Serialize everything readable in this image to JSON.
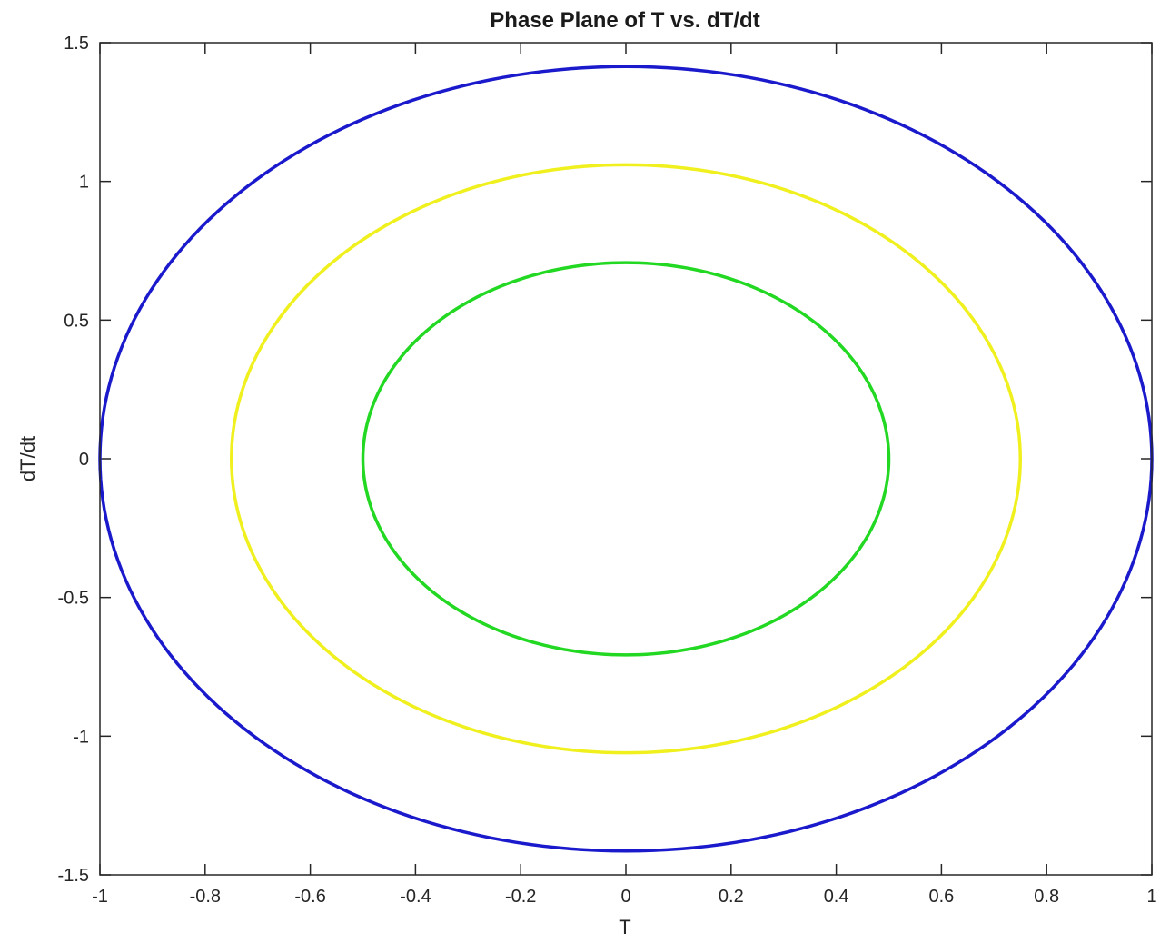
{
  "chart_data": {
    "type": "line",
    "title": "Phase Plane of T vs. dT/dt",
    "xlabel": "T",
    "ylabel": "dT/dt",
    "xlim": [
      -1,
      1
    ],
    "ylim": [
      -1.5,
      1.5
    ],
    "grid": false,
    "xticks": [
      -1,
      -0.8,
      -0.6,
      -0.4,
      -0.2,
      0,
      0.2,
      0.4,
      0.6,
      0.8,
      1
    ],
    "xtick_labels": [
      "-1",
      "-0.8",
      "-0.6",
      "-0.4",
      "-0.2",
      "0",
      "0.2",
      "0.4",
      "0.6",
      "0.8",
      "1"
    ],
    "yticks": [
      -1.5,
      -1,
      -0.5,
      0,
      0.5,
      1,
      1.5
    ],
    "ytick_labels": [
      "-1.5",
      "-1",
      "-0.5",
      "0",
      "0.5",
      "1",
      "1.5"
    ],
    "series": [
      {
        "shape": "closed-orbit",
        "T_amplitude": 1.0,
        "dTdt_amplitude": 1.414,
        "color": "#1a1acc"
      },
      {
        "shape": "closed-orbit",
        "T_amplitude": 0.75,
        "dTdt_amplitude": 1.06,
        "color": "#f0f01e"
      },
      {
        "shape": "closed-orbit",
        "T_amplitude": 0.5,
        "dTdt_amplitude": 0.707,
        "color": "#22d822"
      }
    ]
  }
}
